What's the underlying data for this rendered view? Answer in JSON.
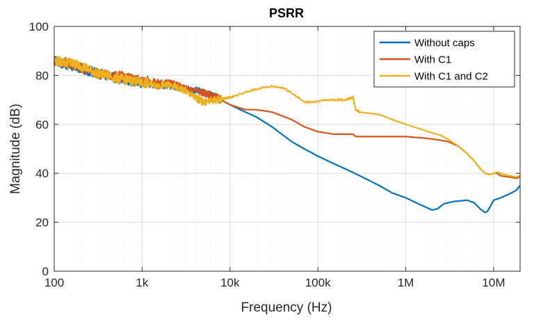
{
  "chart_data": {
    "type": "line",
    "title": "PSRR",
    "xlabel": "Frequency (Hz)",
    "ylabel": "Magnitude (dB)",
    "xscale": "log",
    "xlim": [
      100,
      20000000
    ],
    "ylim": [
      0,
      100
    ],
    "grid": "on",
    "legend_position": "top-right",
    "x_ticks": [
      {
        "value": 100,
        "label": "100"
      },
      {
        "value": 1000,
        "label": "1k"
      },
      {
        "value": 10000,
        "label": "10k"
      },
      {
        "value": 100000,
        "label": "100k"
      },
      {
        "value": 1000000,
        "label": "1M"
      },
      {
        "value": 10000000,
        "label": "10M"
      }
    ],
    "y_ticks": [
      {
        "value": 0,
        "label": "0"
      },
      {
        "value": 20,
        "label": "20"
      },
      {
        "value": 40,
        "label": "40"
      },
      {
        "value": 60,
        "label": "60"
      },
      {
        "value": 80,
        "label": "80"
      },
      {
        "value": 100,
        "label": "100"
      }
    ],
    "series": [
      {
        "name": "Without caps",
        "color": "#0072BD",
        "x": [
          100,
          150,
          200,
          300,
          500,
          700,
          1000,
          1500,
          2000,
          3000,
          5000,
          7000,
          10000,
          15000,
          20000,
          30000,
          50000,
          70000,
          100000,
          150000,
          200000,
          300000,
          500000,
          700000,
          1000000,
          1500000,
          2000000,
          2300000,
          2700000,
          3500000,
          5000000,
          6000000,
          7000000,
          8000000,
          8500000,
          9000000,
          10000000,
          12000000,
          15000000,
          18000000,
          20000000
        ],
        "y": [
          86,
          84,
          83,
          81,
          79,
          78,
          77,
          76,
          76,
          75,
          73,
          71,
          68,
          65,
          63,
          59,
          53,
          50,
          47,
          44,
          42,
          39,
          35,
          32,
          30,
          27,
          25,
          25.5,
          27.5,
          28.5,
          29,
          28,
          25.5,
          24,
          24.5,
          26,
          29,
          30,
          31.5,
          33,
          35
        ]
      },
      {
        "name": "With C1",
        "color": "#D95319",
        "x": [
          100,
          150,
          200,
          300,
          500,
          700,
          1000,
          1500,
          2000,
          3000,
          5000,
          7000,
          10000,
          15000,
          20000,
          30000,
          50000,
          70000,
          100000,
          150000,
          200000,
          250000,
          260000,
          270000,
          300000,
          500000,
          700000,
          1000000,
          1500000,
          2000000,
          2500000,
          3000000,
          4000000,
          5000000,
          6000000,
          7000000,
          8000000,
          9000000,
          10000000,
          11000000,
          12000000,
          15000000,
          18000000,
          20000000
        ],
        "y": [
          86,
          85,
          83,
          81,
          80,
          79,
          78,
          77,
          77,
          75,
          73,
          71,
          68,
          66,
          66,
          65,
          62,
          59,
          57,
          56,
          56,
          56,
          55.5,
          55,
          55,
          55,
          55,
          55,
          54.5,
          54,
          53.5,
          53,
          51,
          48,
          45,
          42,
          40,
          39.5,
          40,
          40,
          39,
          38.5,
          38,
          38.5
        ]
      },
      {
        "name": "With C1 and C2",
        "color": "#EDB120",
        "x": [
          100,
          150,
          200,
          300,
          500,
          700,
          1000,
          1500,
          2000,
          3000,
          4000,
          5000,
          7000,
          10000,
          15000,
          20000,
          30000,
          40000,
          50000,
          70000,
          100000,
          150000,
          200000,
          250000,
          270000,
          300000,
          500000,
          700000,
          1000000,
          1500000,
          2000000,
          2500000,
          3000000,
          4000000,
          5000000,
          6000000,
          7000000,
          8000000,
          9000000,
          10000000,
          11000000,
          12000000,
          15000000,
          18000000,
          20000000
        ],
        "y": [
          86,
          85,
          84,
          81,
          79,
          78,
          77,
          76,
          76,
          74,
          71,
          69,
          70,
          71,
          73,
          74.5,
          75.5,
          75,
          73,
          69,
          69.5,
          70,
          70,
          71,
          66,
          65,
          64,
          62,
          60,
          58,
          56.5,
          55.5,
          54,
          51,
          48,
          45,
          42,
          40,
          39.5,
          40,
          40.5,
          40,
          39,
          38.5,
          39
        ]
      }
    ]
  }
}
